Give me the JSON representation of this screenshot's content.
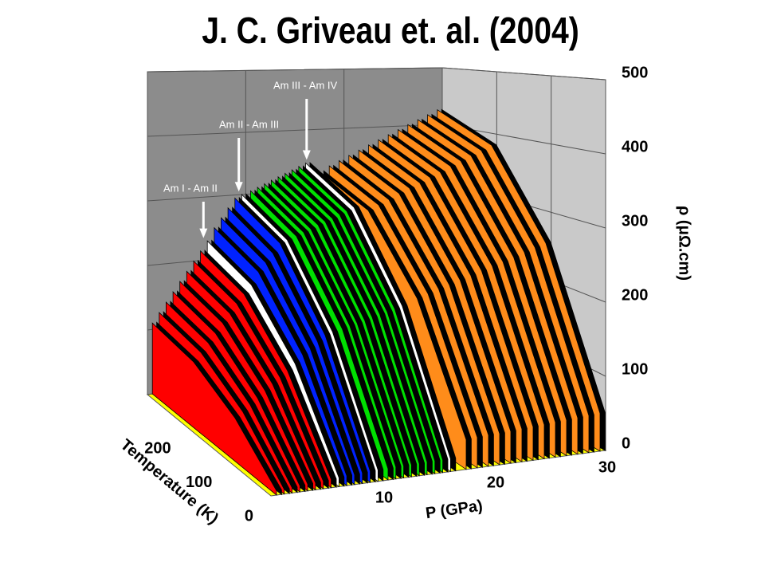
{
  "chart_data": {
    "type": "waterfall3d",
    "title": "J. C. Griveau et. al. (2004)",
    "x_label": "P (GPa)",
    "t_label": "Temperature (K)",
    "y_label": "ρ (μΩ.cm)",
    "xlim": [
      0,
      30
    ],
    "xticks": [
      10,
      20,
      30
    ],
    "tlim": [
      0,
      300
    ],
    "tticks": [
      0,
      100,
      200
    ],
    "ylim": [
      0,
      500
    ],
    "yticks": [
      0,
      100,
      200,
      300,
      400,
      500
    ],
    "temperatures": [
      0,
      100,
      200,
      300
    ],
    "grid": true,
    "wall_colors": {
      "back": "#8c8c8c",
      "side": "#c9c9c9",
      "floor": "#ffff00"
    },
    "annotations": [
      {
        "text": "Am I - Am II",
        "pressure": 5.7
      },
      {
        "text": "Am II - Am III",
        "pressure": 9.3
      },
      {
        "text": "Am III - Am IV",
        "pressure": 16.2
      }
    ],
    "series": [
      {
        "color": "#ff0000",
        "pressures": [
          0.5,
          1.2,
          1.9,
          2.6,
          3.3,
          4.0,
          4.7,
          5.4
        ],
        "values": [
          [
            6,
            61,
            97,
            110
          ],
          [
            6,
            69,
            110,
            125
          ],
          [
            7,
            77,
            123,
            140
          ],
          [
            8,
            85,
            136,
            155
          ],
          [
            9,
            94,
            150,
            170
          ],
          [
            9,
            102,
            163,
            185
          ],
          [
            10,
            110,
            176,
            200
          ],
          [
            11,
            118,
            189,
            215
          ]
        ]
      },
      {
        "color": "#ffffff",
        "pressures": [
          6.1
        ],
        "values": [
          [
            12,
            127,
            202,
            230
          ]
        ]
      },
      {
        "color": "#0022ff",
        "pressures": [
          6.8,
          7.5,
          8.2,
          8.9
        ],
        "values": [
          [
            13,
            138,
            220,
            250
          ],
          [
            13,
            146,
            233,
            265
          ],
          [
            14,
            154,
            246,
            280
          ],
          [
            15,
            162,
            260,
            295
          ]
        ]
      },
      {
        "color": "#ffffff",
        "pressures": [
          9.6
        ],
        "values": [
          [
            15,
            165,
            264,
            300
          ]
        ]
      },
      {
        "color": "#00e000",
        "pressures": [
          10.5,
          11.2,
          11.9,
          12.6,
          13.3,
          14.0,
          14.7,
          15.4
        ],
        "values": [
          [
            15,
            168,
            268,
            305
          ],
          [
            16,
            171,
            273,
            310
          ],
          [
            16,
            173,
            277,
            315
          ],
          [
            16,
            176,
            282,
            320
          ],
          [
            16,
            179,
            286,
            325
          ],
          [
            17,
            182,
            290,
            330
          ],
          [
            17,
            184,
            295,
            335
          ],
          [
            17,
            187,
            299,
            340
          ]
        ]
      },
      {
        "color": "#ffffff",
        "pressures": [
          16.1
        ],
        "values": [
          [
            17,
            190,
            304,
            345
          ]
        ]
      },
      {
        "color": "#ff8c1a",
        "pressures": [
          17.5,
          18.5,
          19.5,
          20.5,
          21.5,
          22.5,
          23.5,
          24.5,
          25.5,
          26.5,
          27.5,
          28.5,
          29.5
        ],
        "values": [
          [
            40,
            198,
            297,
            330
          ],
          [
            41,
            203,
            304,
            338
          ],
          [
            42,
            208,
            311,
            346
          ],
          [
            42,
            212,
            319,
            354
          ],
          [
            43,
            217,
            326,
            362
          ],
          [
            44,
            222,
            333,
            370
          ],
          [
            45,
            227,
            340,
            378
          ],
          [
            46,
            232,
            347,
            386
          ],
          [
            47,
            236,
            355,
            394
          ],
          [
            48,
            241,
            362,
            402
          ],
          [
            49,
            246,
            369,
            410
          ],
          [
            50,
            251,
            376,
            418
          ],
          [
            51,
            256,
            383,
            426
          ]
        ]
      }
    ]
  }
}
